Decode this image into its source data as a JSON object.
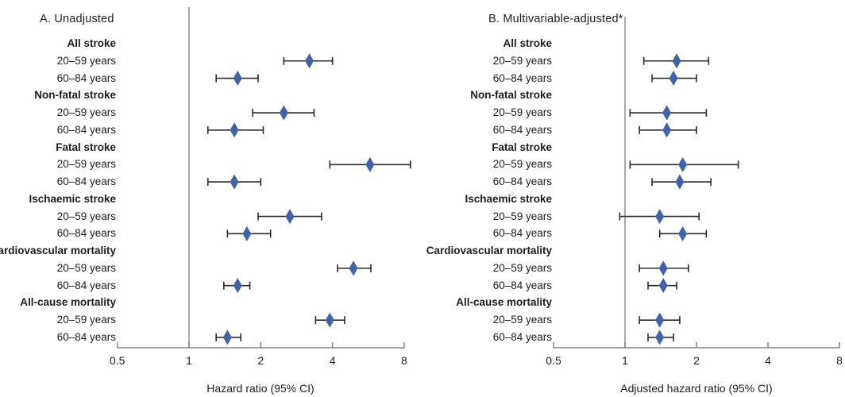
{
  "style": {
    "marker_color": "#3e62ad",
    "ci_color": "#2b2b2b",
    "axis_color": "#8c8781",
    "reference_line_color": "#9a948e",
    "text_color": "#1d1d1b",
    "background": "#ffffff"
  },
  "chart_data": [
    {
      "type": "scatter",
      "subtype": "forest-plot",
      "title": "A. Unadjusted",
      "xlabel": "Hazard ratio (95% CI)",
      "x_scale": "log2",
      "xlim": [
        0.5,
        8.5
      ],
      "x_ticks": [
        "0.5",
        "1",
        "2",
        "4",
        "8"
      ],
      "x_tick_values": [
        0.5,
        1,
        2,
        4,
        8
      ],
      "reference_line": 1,
      "legend": "none",
      "grid": false,
      "groups": [
        {
          "label": "All stroke",
          "rows": [
            {
              "label": "20–59 years",
              "est": 3.2,
              "lo": 2.5,
              "hi": 4.0
            },
            {
              "label": "60–84 years",
              "est": 1.6,
              "lo": 1.3,
              "hi": 1.95
            }
          ]
        },
        {
          "label": "Non-fatal stroke",
          "rows": [
            {
              "label": "20–59 years",
              "est": 2.5,
              "lo": 1.85,
              "hi": 3.35
            },
            {
              "label": "60–84 years",
              "est": 1.55,
              "lo": 1.2,
              "hi": 2.05
            }
          ]
        },
        {
          "label": "Fatal stroke",
          "rows": [
            {
              "label": "20–59 years",
              "est": 5.75,
              "lo": 3.9,
              "hi": 8.5
            },
            {
              "label": "60–84 years",
              "est": 1.55,
              "lo": 1.2,
              "hi": 2.0
            }
          ]
        },
        {
          "label": "Ischaemic stroke",
          "rows": [
            {
              "label": "20–59 years",
              "est": 2.65,
              "lo": 1.95,
              "hi": 3.6
            },
            {
              "label": "60–84 years",
              "est": 1.75,
              "lo": 1.45,
              "hi": 2.2
            }
          ]
        },
        {
          "label": "Cardiovascular mortality",
          "rows": [
            {
              "label": "20–59 years",
              "est": 4.9,
              "lo": 4.2,
              "hi": 5.8
            },
            {
              "label": "60–84 years",
              "est": 1.6,
              "lo": 1.4,
              "hi": 1.8
            }
          ]
        },
        {
          "label": "All-cause mortality",
          "rows": [
            {
              "label": "20–59 years",
              "est": 3.9,
              "lo": 3.4,
              "hi": 4.5
            },
            {
              "label": "60–84 years",
              "est": 1.45,
              "lo": 1.3,
              "hi": 1.65
            }
          ]
        }
      ]
    },
    {
      "type": "scatter",
      "subtype": "forest-plot",
      "title": "B. Multivariable-adjusted*",
      "xlabel": "Adjusted hazard ratio (95% CI)",
      "x_scale": "log2",
      "xlim": [
        0.5,
        8
      ],
      "x_ticks": [
        "0.5",
        "1",
        "2",
        "4",
        "8"
      ],
      "x_tick_values": [
        0.5,
        1,
        2,
        4,
        8
      ],
      "reference_line": 1,
      "legend": "none",
      "grid": false,
      "groups": [
        {
          "label": "All stroke",
          "rows": [
            {
              "label": "20–59 years",
              "est": 1.65,
              "lo": 1.2,
              "hi": 2.25
            },
            {
              "label": "60–84 years",
              "est": 1.6,
              "lo": 1.3,
              "hi": 2.0
            }
          ]
        },
        {
          "label": "Non-fatal stroke",
          "rows": [
            {
              "label": "20–59 years",
              "est": 1.5,
              "lo": 1.05,
              "hi": 2.2
            },
            {
              "label": "60–84 years",
              "est": 1.5,
              "lo": 1.15,
              "hi": 2.0
            }
          ]
        },
        {
          "label": "Fatal stroke",
          "rows": [
            {
              "label": "20–59 years",
              "est": 1.75,
              "lo": 1.05,
              "hi": 3.0
            },
            {
              "label": "60–84 years",
              "est": 1.7,
              "lo": 1.3,
              "hi": 2.3
            }
          ]
        },
        {
          "label": "Ischaemic stroke",
          "rows": [
            {
              "label": "20–59 years",
              "est": 1.4,
              "lo": 0.95,
              "hi": 2.05
            },
            {
              "label": "60–84 years",
              "est": 1.75,
              "lo": 1.4,
              "hi": 2.2
            }
          ]
        },
        {
          "label": "Cardiovascular mortality",
          "rows": [
            {
              "label": "20–59 years",
              "est": 1.45,
              "lo": 1.15,
              "hi": 1.85
            },
            {
              "label": "60–84 years",
              "est": 1.45,
              "lo": 1.25,
              "hi": 1.65
            }
          ]
        },
        {
          "label": "All-cause mortality",
          "rows": [
            {
              "label": "20–59 years",
              "est": 1.4,
              "lo": 1.15,
              "hi": 1.7
            },
            {
              "label": "60–84 years",
              "est": 1.4,
              "lo": 1.25,
              "hi": 1.6
            }
          ]
        }
      ]
    }
  ]
}
